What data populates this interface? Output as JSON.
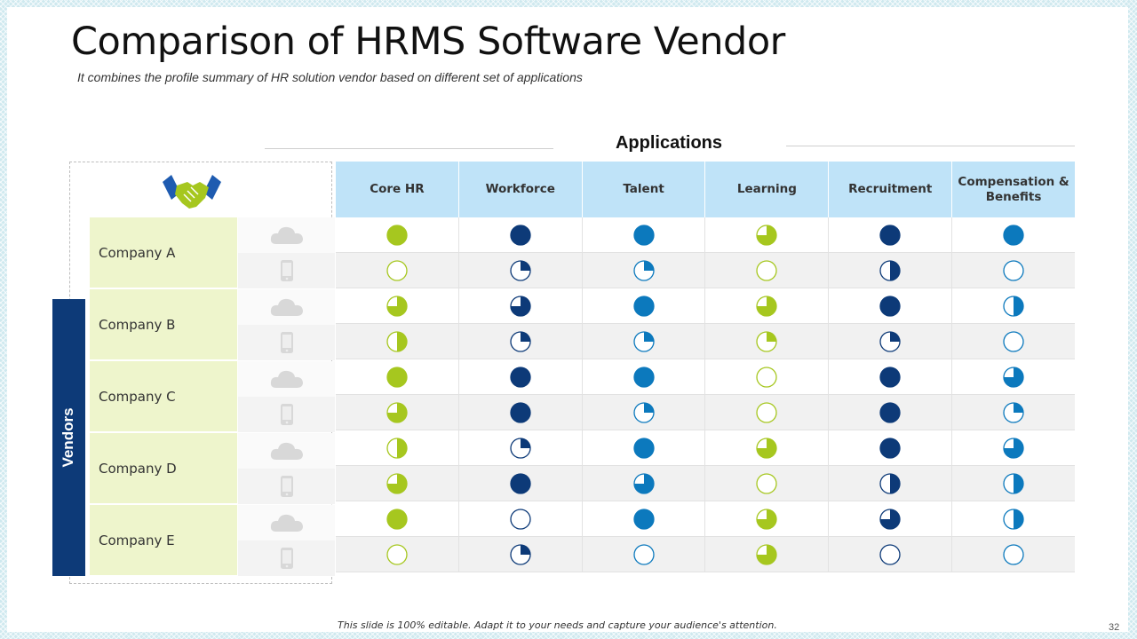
{
  "title": "Comparison of HRMS Software Vendor",
  "subtitle": "It combines the profile summary of HR solution vendor based on different set of  applications",
  "applications_label": "Applications",
  "vendors_label": "Vendors",
  "footer": "This slide is 100% editable. Adapt it to your needs and capture your audience's attention.",
  "page_number": "32",
  "colors": {
    "Core HR": "#a6c71f",
    "Workforce": "#0d3a78",
    "Talent": "#0c79bd",
    "Learning": "#a6c71f",
    "Recruitment": "#0d3a78",
    "Compensation & Benefits": "#0c79bd",
    "header_bg": "#bfe3f8",
    "company_bg": "#eef5cc",
    "vendors_bar": "#0d3a78"
  },
  "row_icons": [
    "cloud-icon",
    "mobile-icon"
  ],
  "applications": [
    "Core HR",
    "Workforce",
    "Talent",
    "Learning",
    "Recruitment",
    "Compensation & Benefits"
  ],
  "companies": [
    {
      "name": "Company A",
      "ratings": [
        [
          1,
          1,
          1,
          0.75,
          1,
          1
        ],
        [
          0,
          0.25,
          0.25,
          0,
          0.5,
          0
        ]
      ]
    },
    {
      "name": "Company B",
      "ratings": [
        [
          0.75,
          0.75,
          1,
          0.75,
          1,
          0.5
        ],
        [
          0.5,
          0.25,
          0.25,
          0.25,
          0.25,
          0
        ]
      ]
    },
    {
      "name": "Company C",
      "ratings": [
        [
          1,
          1,
          1,
          0,
          1,
          0.75
        ],
        [
          0.75,
          1,
          0.25,
          0,
          1,
          0.25
        ]
      ]
    },
    {
      "name": "Company D",
      "ratings": [
        [
          0.5,
          0.25,
          1,
          0.75,
          1,
          0.75
        ],
        [
          0.75,
          1,
          0.75,
          0,
          0.5,
          0.5
        ]
      ]
    },
    {
      "name": "Company E",
      "ratings": [
        [
          1,
          0,
          1,
          0.75,
          0.75,
          0.5
        ],
        [
          0,
          0.25,
          0,
          0.75,
          0,
          0
        ]
      ]
    }
  ]
}
